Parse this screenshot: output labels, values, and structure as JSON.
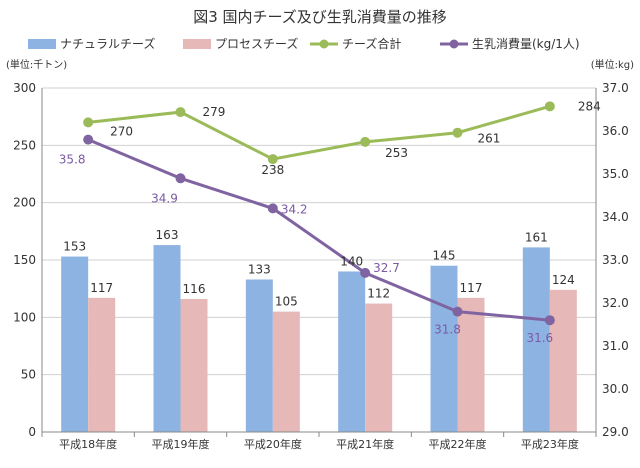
{
  "chart_data": {
    "type": "bar",
    "title": "図3 国内チーズ及び生乳消費量の推移",
    "ylabel_left": "(単位:千トン)",
    "ylabel_right": "(単位:kg)",
    "categories": [
      "平成18年度",
      "平成19年度",
      "平成20年度",
      "平成21年度",
      "平成22年度",
      "平成23年度"
    ],
    "ylim_left": [
      0,
      300
    ],
    "yticks_left": [
      "0",
      "50",
      "100",
      "150",
      "200",
      "250",
      "300"
    ],
    "ylim_right": [
      29.0,
      37.0
    ],
    "yticks_right": [
      "29.0",
      "30.0",
      "31.0",
      "32.0",
      "33.0",
      "34.0",
      "35.0",
      "36.0",
      "37.0"
    ],
    "grid": true,
    "legend_position": "top",
    "series": [
      {
        "name": "ナチュラルチーズ",
        "type": "bar",
        "axis": "left",
        "color": "#8db3e2",
        "values": [
          153,
          163,
          133,
          140,
          145,
          161
        ],
        "labels": [
          "153",
          "163",
          "133",
          "140",
          "145",
          "161"
        ]
      },
      {
        "name": "プロセスチーズ",
        "type": "bar",
        "axis": "left",
        "color": "#e6b8b7",
        "values": [
          117,
          116,
          105,
          112,
          117,
          124
        ],
        "labels": [
          "117",
          "116",
          "105",
          "112",
          "117",
          "124"
        ]
      },
      {
        "name": "チーズ合計",
        "type": "line",
        "axis": "left",
        "color": "#9bbb59",
        "values": [
          270,
          279,
          238,
          253,
          261,
          284
        ],
        "labels": [
          "270",
          "279",
          "238",
          "253",
          "261",
          "284"
        ]
      },
      {
        "name": "生乳消費量(kg/1人)",
        "type": "line",
        "axis": "right",
        "color": "#8064a2",
        "values": [
          35.8,
          34.9,
          34.2,
          32.7,
          31.8,
          31.6
        ],
        "labels": [
          "35.8",
          "34.9",
          "34.2",
          "32.7",
          "31.8",
          "31.6"
        ]
      }
    ]
  }
}
